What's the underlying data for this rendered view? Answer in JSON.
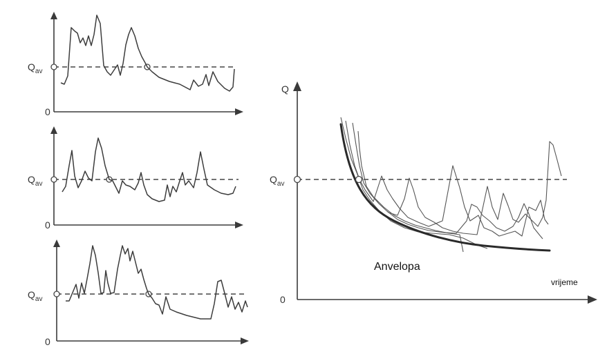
{
  "labels": {
    "q_symbol": "Q",
    "q_avg_main": "Q",
    "q_avg_sub": "av",
    "zero": "0",
    "time": "vrijeme",
    "envelope": "Anvelopa"
  }
}
